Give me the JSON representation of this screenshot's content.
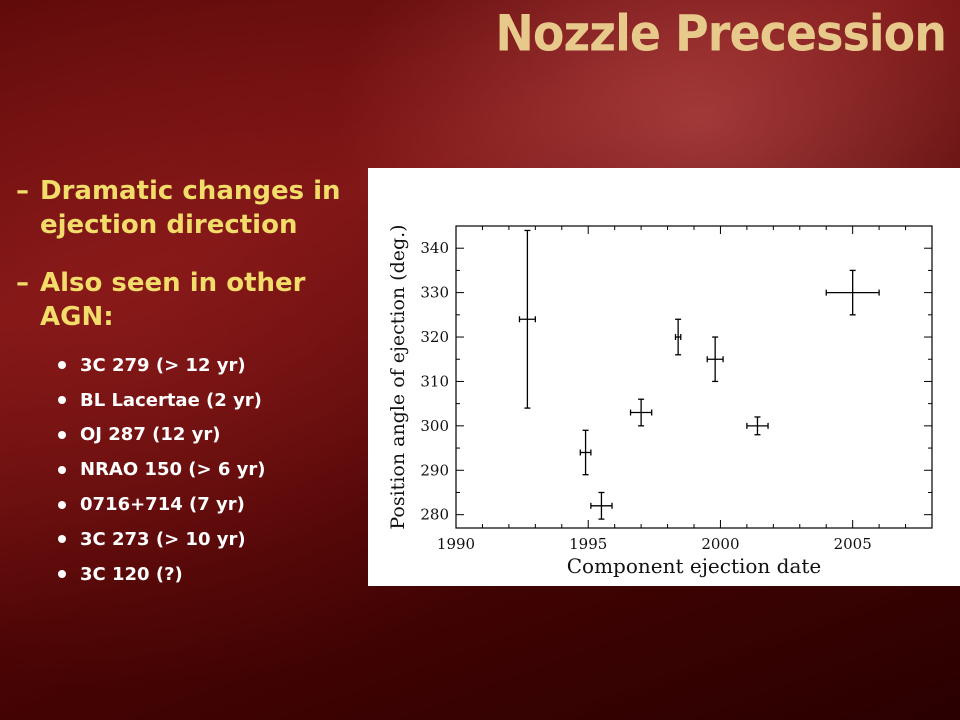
{
  "slide": {
    "title": "Nozzle Precession",
    "bullets": [
      {
        "marker": "–",
        "text": "Dramatic changes in ejection direction"
      },
      {
        "marker": "–",
        "text": "Also seen in other AGN:"
      }
    ],
    "sub_bullets": [
      "3C 279 (> 12 yr)",
      "BL Lacertae (2 yr)",
      "OJ 287 (12 yr)",
      "NRAO 150 (> 6 yr)",
      "0716+714 (7 yr)",
      "3C 273 (> 10 yr)",
      "3C 120 (?)"
    ]
  },
  "colors": {
    "title": "#e8c98c",
    "bullet_text": "#f3dd6a",
    "sub_bullet_text": "#ffffff",
    "background": "#6a0e0e"
  },
  "chart_data": {
    "type": "scatter",
    "xlabel": "Component ejection date",
    "ylabel": "Position angle of ejection (deg.)",
    "xlim": [
      1990,
      2008
    ],
    "ylim": [
      277,
      345
    ],
    "xticks": [
      1990,
      1995,
      2000,
      2005
    ],
    "yticks": [
      280,
      290,
      300,
      310,
      320,
      330,
      340
    ],
    "grid": false,
    "points": [
      {
        "x": 1992.7,
        "y": 324,
        "xerr": 0.3,
        "yerr_low": 20,
        "yerr_high": 20
      },
      {
        "x": 1994.9,
        "y": 294,
        "xerr": 0.2,
        "yerr_low": 5,
        "yerr_high": 5
      },
      {
        "x": 1995.5,
        "y": 282,
        "xerr": 0.4,
        "yerr_low": 3,
        "yerr_high": 3
      },
      {
        "x": 1997.0,
        "y": 303,
        "xerr": 0.4,
        "yerr_low": 3,
        "yerr_high": 3
      },
      {
        "x": 1998.4,
        "y": 320,
        "xerr": 0.1,
        "yerr_low": 4,
        "yerr_high": 4
      },
      {
        "x": 1999.8,
        "y": 315,
        "xerr": 0.3,
        "yerr_low": 5,
        "yerr_high": 5
      },
      {
        "x": 2001.4,
        "y": 300,
        "xerr": 0.4,
        "yerr_low": 2,
        "yerr_high": 2
      },
      {
        "x": 2005.0,
        "y": 330,
        "xerr": 1.0,
        "yerr_low": 5,
        "yerr_high": 5
      }
    ]
  }
}
